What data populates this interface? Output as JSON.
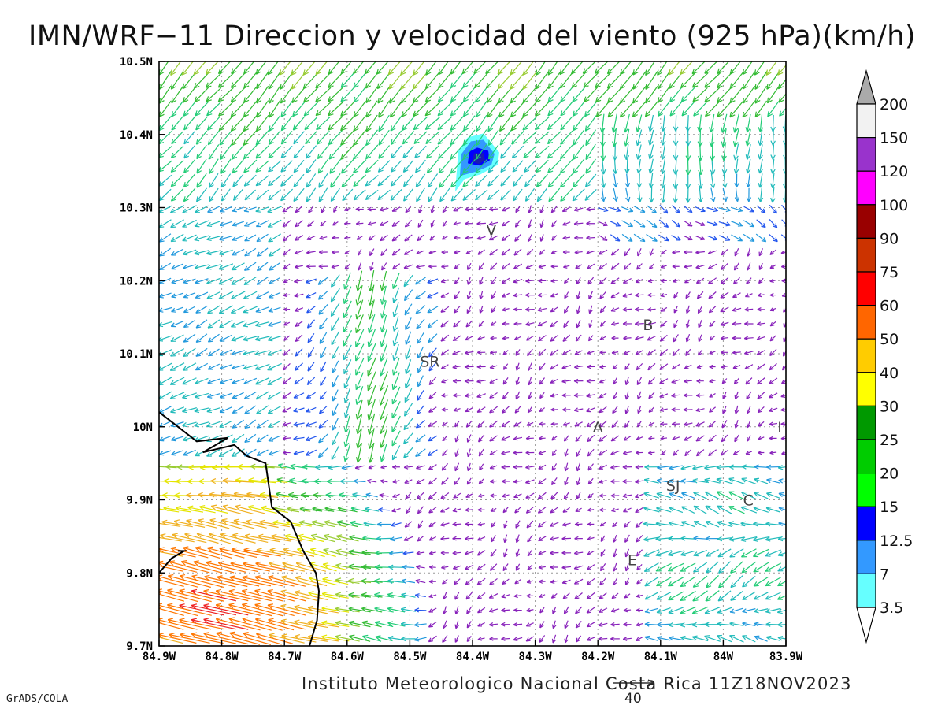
{
  "title": "IMN/WRF−11 Direccion y velocidad del viento (925 hPa)(km/h)",
  "footer": "Instituto Meteorologico Nacional Costa Rica 11Z18NOV2023",
  "credit": "GrADS/COLA",
  "reference_vector": {
    "label": "40",
    "value": 40
  },
  "map": {
    "lon_range": [
      -84.9,
      -83.9
    ],
    "lat_range": [
      9.7,
      10.5
    ],
    "x_ticks": [
      {
        "lon": -84.9,
        "label": "84.9W"
      },
      {
        "lon": -84.8,
        "label": "84.8W"
      },
      {
        "lon": -84.7,
        "label": "84.7W"
      },
      {
        "lon": -84.6,
        "label": "84.6W"
      },
      {
        "lon": -84.5,
        "label": "84.5W"
      },
      {
        "lon": -84.4,
        "label": "84.4W"
      },
      {
        "lon": -84.3,
        "label": "84.3W"
      },
      {
        "lon": -84.2,
        "label": "84.2W"
      },
      {
        "lon": -84.1,
        "label": "84.1W"
      },
      {
        "lon": -84.0,
        "label": "84W"
      },
      {
        "lon": -83.9,
        "label": "83.9W"
      }
    ],
    "y_ticks": [
      {
        "lat": 9.7,
        "label": "9.7N"
      },
      {
        "lat": 9.8,
        "label": "9.8N"
      },
      {
        "lat": 9.9,
        "label": "9.9N"
      },
      {
        "lat": 10.0,
        "label": "10N"
      },
      {
        "lat": 10.1,
        "label": "10.1N"
      },
      {
        "lat": 10.2,
        "label": "10.2N"
      },
      {
        "lat": 10.3,
        "label": "10.3N"
      },
      {
        "lat": 10.4,
        "label": "10.4N"
      },
      {
        "lat": 10.5,
        "label": "10.5N"
      }
    ],
    "grid": true,
    "cities": [
      {
        "label": "V",
        "lon": -84.37,
        "lat": 10.27
      },
      {
        "label": "B",
        "lon": -84.12,
        "lat": 10.14
      },
      {
        "label": "SR",
        "lon": -84.468,
        "lat": 10.09
      },
      {
        "label": "A",
        "lon": -84.2,
        "lat": 10.0
      },
      {
        "label": "I",
        "lon": -83.91,
        "lat": 10.0
      },
      {
        "label": "SJ",
        "lon": -84.08,
        "lat": 9.92
      },
      {
        "label": "C",
        "lon": -83.96,
        "lat": 9.9
      },
      {
        "label": "E",
        "lon": -84.145,
        "lat": 9.818
      }
    ],
    "coastline": [
      [
        -84.9,
        10.02
      ],
      [
        -84.87,
        10.0
      ],
      [
        -84.84,
        9.98
      ],
      [
        -84.79,
        9.985
      ],
      [
        -84.83,
        9.965
      ],
      [
        -84.78,
        9.975
      ],
      [
        -84.76,
        9.96
      ],
      [
        -84.73,
        9.95
      ],
      [
        -84.72,
        9.89
      ],
      [
        -84.69,
        9.87
      ],
      [
        -84.67,
        9.83
      ],
      [
        -84.65,
        9.8
      ],
      [
        -84.645,
        9.775
      ],
      [
        -84.648,
        9.735
      ],
      [
        -84.66,
        9.7
      ]
    ],
    "coastline2": [
      [
        -84.9,
        9.8
      ],
      [
        -84.88,
        9.82
      ],
      [
        -84.86,
        9.83
      ],
      [
        -84.87,
        9.83
      ]
    ],
    "wind_maximum": {
      "lon": -84.39,
      "lat": 10.367
    }
  },
  "colorbar": {
    "levels": [
      "3.5",
      "7",
      "12.5",
      "15",
      "20",
      "25",
      "30",
      "40",
      "50",
      "60",
      "75",
      "90",
      "100",
      "120",
      "150",
      "200"
    ],
    "colors": [
      "#66ffff",
      "#3399ff",
      "#0000ff",
      "#00ff00",
      "#00cc00",
      "#009900",
      "#ffff00",
      "#ffcc00",
      "#ff6600",
      "#ff0000",
      "#cc3300",
      "#990000",
      "#ff00ff",
      "#9933cc",
      "#f2f2f2",
      "#aaaaaa"
    ]
  }
}
